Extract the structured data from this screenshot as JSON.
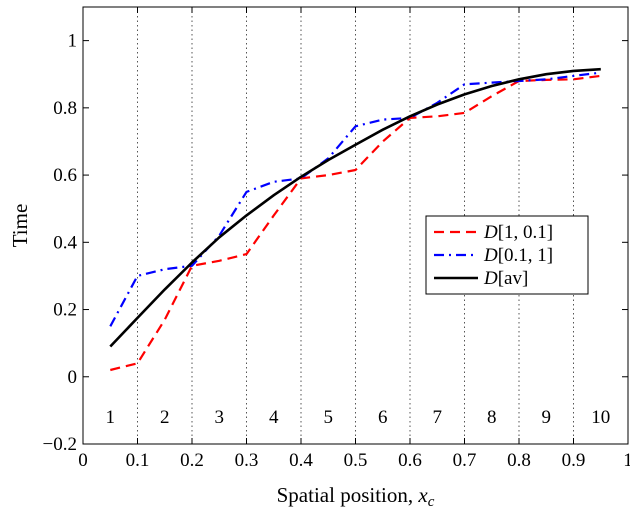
{
  "chart_data": {
    "type": "line",
    "title": "",
    "xlabel": "Spatial position, ",
    "xlabel_sub_main": "x",
    "xlabel_sub_script": "c",
    "ylabel": "Time",
    "xlim": [
      0,
      1
    ],
    "ylim": [
      -0.2,
      1.1
    ],
    "xticks": [
      0,
      0.1,
      0.2,
      0.3,
      0.4,
      0.5,
      0.6,
      0.7,
      0.8,
      0.9,
      1
    ],
    "xtick_labels": [
      "0",
      "0.1",
      "0.2",
      "0.3",
      "0.4",
      "0.5",
      "0.6",
      "0.7",
      "0.8",
      "0.9",
      "1"
    ],
    "yticks": [
      -0.2,
      0,
      0.2,
      0.4,
      0.6,
      0.8,
      1
    ],
    "ytick_labels": [
      "−0.2",
      "0",
      "0.2",
      "0.4",
      "0.6",
      "0.8",
      "1"
    ],
    "grid": "vertical dotted lines at x = 0.1 … 0.9",
    "legend_position": "right-center",
    "region_labels": [
      {
        "x": 0.05,
        "label": "1"
      },
      {
        "x": 0.15,
        "label": "2"
      },
      {
        "x": 0.25,
        "label": "3"
      },
      {
        "x": 0.35,
        "label": "4"
      },
      {
        "x": 0.45,
        "label": "5"
      },
      {
        "x": 0.55,
        "label": "6"
      },
      {
        "x": 0.65,
        "label": "7"
      },
      {
        "x": 0.75,
        "label": "8"
      },
      {
        "x": 0.85,
        "label": "9"
      },
      {
        "x": 0.95,
        "label": "10"
      }
    ],
    "region_label_y": -0.12,
    "series": [
      {
        "name": "D[1, 0.1]",
        "legend_main": "D",
        "legend_rest": "[1, 0.1]",
        "color": "#ff0000",
        "style": "dashed",
        "x": [
          0.05,
          0.1,
          0.15,
          0.2,
          0.25,
          0.3,
          0.35,
          0.4,
          0.45,
          0.5,
          0.55,
          0.6,
          0.65,
          0.7,
          0.75,
          0.8,
          0.85,
          0.9,
          0.95
        ],
        "y": [
          0.02,
          0.04,
          0.17,
          0.33,
          0.345,
          0.365,
          0.48,
          0.59,
          0.6,
          0.615,
          0.7,
          0.77,
          0.775,
          0.785,
          0.835,
          0.88,
          0.883,
          0.885,
          0.895
        ]
      },
      {
        "name": "D[0.1, 1]",
        "legend_main": "D",
        "legend_rest": "[0.1, 1]",
        "color": "#0000ff",
        "style": "dash-dot",
        "x": [
          0.05,
          0.1,
          0.15,
          0.2,
          0.25,
          0.3,
          0.35,
          0.4,
          0.45,
          0.5,
          0.55,
          0.6,
          0.65,
          0.7,
          0.75,
          0.8,
          0.85,
          0.9,
          0.95
        ],
        "y": [
          0.15,
          0.3,
          0.32,
          0.33,
          0.42,
          0.55,
          0.58,
          0.59,
          0.65,
          0.745,
          0.765,
          0.77,
          0.815,
          0.87,
          0.875,
          0.88,
          0.885,
          0.895,
          0.905
        ]
      },
      {
        "name": "D[av]",
        "legend_main": "D",
        "legend_rest": "[av]",
        "color": "#000000",
        "style": "solid",
        "x": [
          0.05,
          0.1,
          0.15,
          0.2,
          0.25,
          0.3,
          0.35,
          0.4,
          0.45,
          0.5,
          0.55,
          0.6,
          0.65,
          0.7,
          0.75,
          0.8,
          0.85,
          0.9,
          0.95
        ],
        "y": [
          0.09,
          0.175,
          0.26,
          0.34,
          0.415,
          0.48,
          0.54,
          0.595,
          0.645,
          0.69,
          0.735,
          0.775,
          0.81,
          0.84,
          0.865,
          0.885,
          0.9,
          0.91,
          0.915
        ]
      }
    ]
  }
}
